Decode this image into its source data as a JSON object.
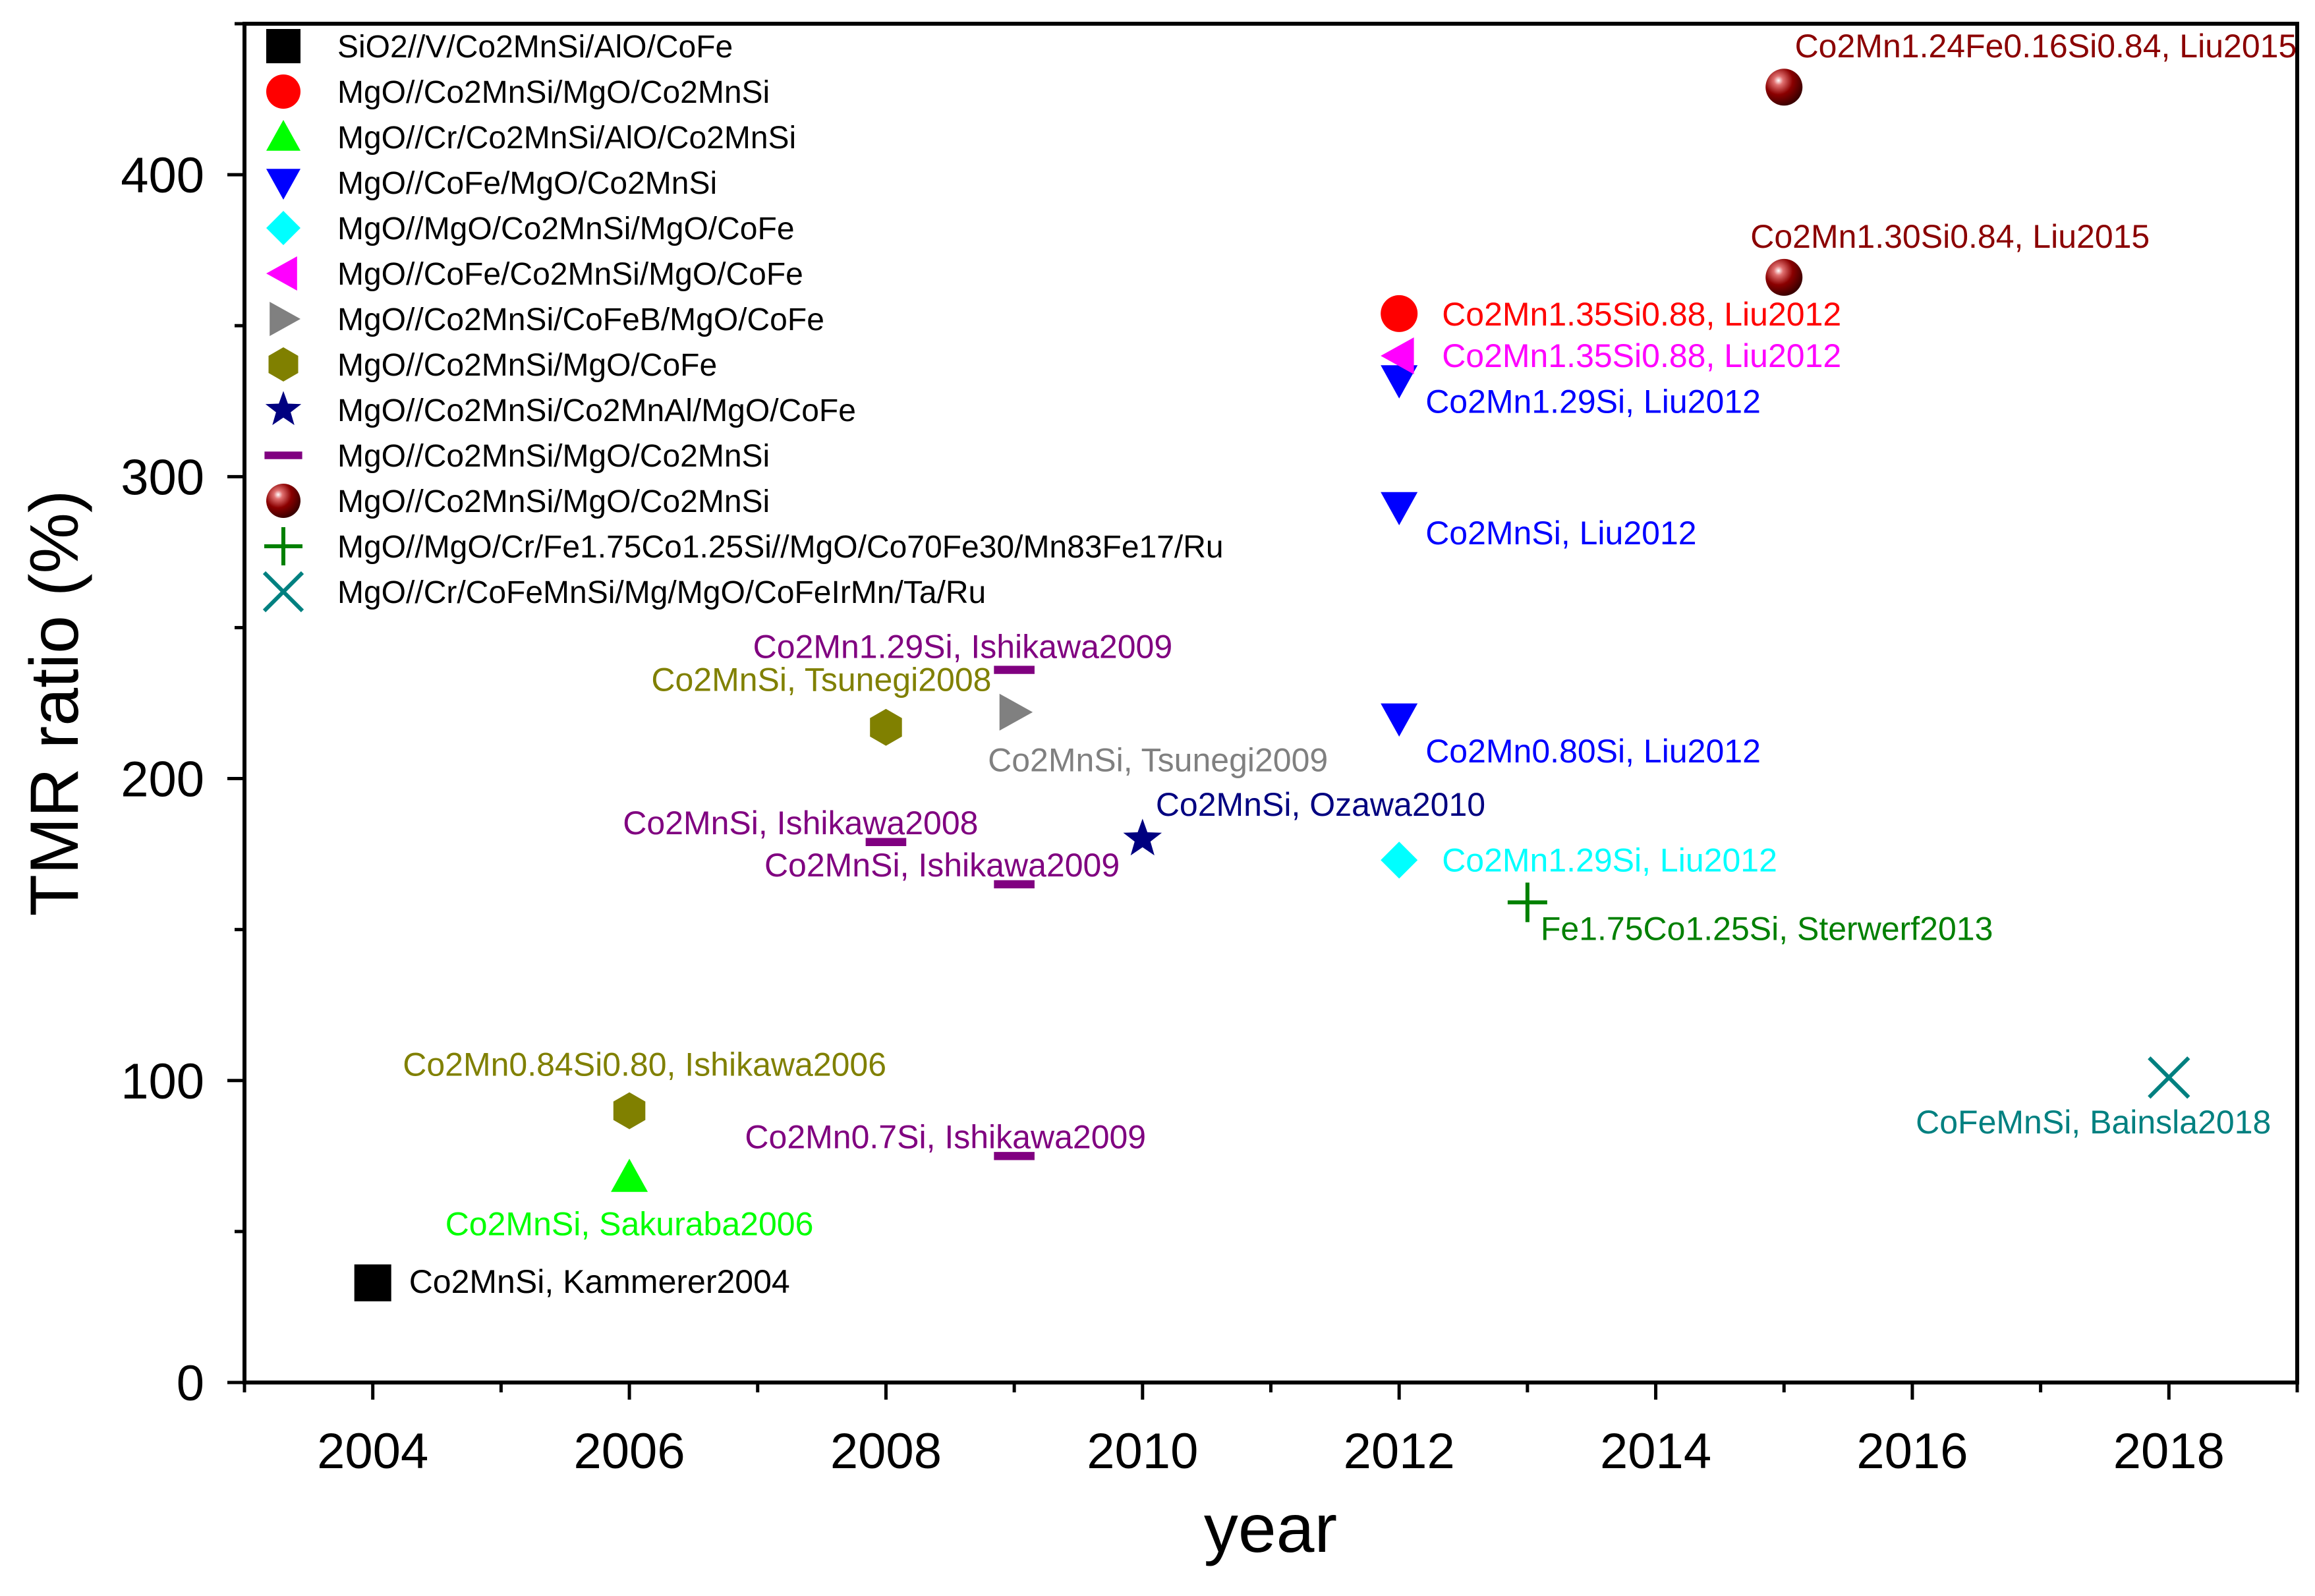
{
  "chart_data": {
    "type": "scatter",
    "title": "",
    "xlabel": "year",
    "ylabel": "TMR ratio (%)",
    "xlim": [
      2003,
      2019
    ],
    "ylim": [
      0,
      450
    ],
    "xticks": [
      2004,
      2006,
      2008,
      2010,
      2012,
      2014,
      2016,
      2018
    ],
    "yticks": [
      0,
      100,
      200,
      300,
      400
    ],
    "grid": false,
    "legend_position": "top-left",
    "series": [
      {
        "name": "SiO2//V/Co2MnSi/AlO/CoFe",
        "marker": "square",
        "color": "#000000",
        "points": [
          {
            "x": 2004,
            "y": 33,
            "label": "Co2MnSi, Kammerer2004"
          }
        ]
      },
      {
        "name": "MgO//Co2MnSi/MgO/Co2MnSi",
        "marker": "circle",
        "color": "#ff0000",
        "points": [
          {
            "x": 2012,
            "y": 354,
            "label": "Co2Mn1.35Si0.88, Liu2012"
          }
        ]
      },
      {
        "name": "MgO//Cr/Co2MnSi/AlO/Co2MnSi",
        "marker": "triangle-up",
        "color": "#00ff00",
        "points": [
          {
            "x": 2006,
            "y": 68,
            "label": "Co2MnSi, Sakuraba2006"
          }
        ]
      },
      {
        "name": "MgO//CoFe/MgO/Co2MnSi",
        "marker": "triangle-down",
        "color": "#0000ff",
        "points": [
          {
            "x": 2012,
            "y": 332,
            "label": "Co2Mn1.29Si, Liu2012"
          },
          {
            "x": 2012,
            "y": 290,
            "label": "Co2MnSi, Liu2012"
          },
          {
            "x": 2012,
            "y": 220,
            "label": "Co2Mn0.80Si, Liu2012"
          }
        ]
      },
      {
        "name": "MgO//MgO/Co2MnSi/MgO/CoFe",
        "marker": "diamond",
        "color": "#00ffff",
        "points": [
          {
            "x": 2012,
            "y": 173,
            "label": "Co2Mn1.29Si, Liu2012"
          }
        ]
      },
      {
        "name": "MgO//CoFe/Co2MnSi/MgO/CoFe",
        "marker": "triangle-left",
        "color": "#ff00ff",
        "points": [
          {
            "x": 2012,
            "y": 340,
            "label": "Co2Mn1.35Si0.88, Liu2012"
          }
        ]
      },
      {
        "name": "MgO//Co2MnSi/CoFeB/MgO/CoFe",
        "marker": "triangle-right",
        "color": "#808080",
        "points": [
          {
            "x": 2009,
            "y": 222,
            "label": "Co2MnSi, Tsunegi2009"
          }
        ]
      },
      {
        "name": "MgO//Co2MnSi/MgO/CoFe",
        "marker": "hexagon",
        "color": "#808000",
        "points": [
          {
            "x": 2008,
            "y": 217,
            "label": "Co2MnSi, Tsunegi2008"
          },
          {
            "x": 2006,
            "y": 90,
            "label": "Co2Mn0.84Si0.80, Ishikawa2006"
          }
        ]
      },
      {
        "name": "MgO//Co2MnSi/Co2MnAl/MgO/CoFe",
        "marker": "star",
        "color": "#000080",
        "points": [
          {
            "x": 2010,
            "y": 180,
            "label": "Co2MnSi, Ozawa2010"
          }
        ]
      },
      {
        "name": "MgO//Co2MnSi/MgO/Co2MnSi",
        "marker": "dash",
        "color": "#800080",
        "points": [
          {
            "x": 2009,
            "y": 236,
            "label": "Co2Mn1.29Si, Ishikawa2009"
          },
          {
            "x": 2008,
            "y": 179,
            "label": "Co2MnSi, Ishikawa2008"
          },
          {
            "x": 2009,
            "y": 165,
            "label": "Co2MnSi, Ishikawa2009"
          },
          {
            "x": 2009,
            "y": 75,
            "label": "Co2Mn0.7Si, Ishikawa2009"
          }
        ]
      },
      {
        "name": "MgO//Co2MnSi/MgO/Co2MnSi",
        "marker": "sphere",
        "color": "#8b0000",
        "points": [
          {
            "x": 2015,
            "y": 429,
            "label": "Co2Mn1.24Fe0.16Si0.84, Liu2015"
          },
          {
            "x": 2015,
            "y": 366,
            "label": "Co2Mn1.30Si0.84, Liu2015"
          }
        ]
      },
      {
        "name": "MgO//MgO/Cr/Fe1.75Co1.25Si//MgO/Co70Fe30/Mn83Fe17/Ru",
        "marker": "plus",
        "color": "#008000",
        "points": [
          {
            "x": 2013,
            "y": 159,
            "label": "Fe1.75Co1.25Si, Sterwerf2013"
          }
        ]
      },
      {
        "name": "MgO//Cr/CoFeMnSi/Mg/MgO/CoFeIrMn/Ta/Ru",
        "marker": "x",
        "color": "#008080",
        "points": [
          {
            "x": 2018,
            "y": 101,
            "label": "CoFeMnSi, Bainsla2018"
          }
        ]
      }
    ]
  }
}
